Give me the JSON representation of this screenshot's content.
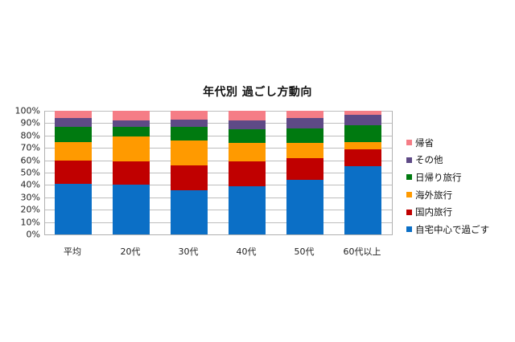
{
  "chart_data": {
    "type": "bar",
    "stacked": true,
    "percent_stacked": true,
    "title": "年代別 過ごし方動向",
    "xlabel": "",
    "ylabel": "",
    "ylim": [
      0,
      100
    ],
    "yticks": [
      "0%",
      "10%",
      "20%",
      "30%",
      "40%",
      "50%",
      "60%",
      "70%",
      "80%",
      "90%",
      "100%"
    ],
    "grid": true,
    "legend_position": "right",
    "categories": [
      "平均",
      "20代",
      "30代",
      "40代",
      "50代",
      "60代以上"
    ],
    "series": [
      {
        "name": "自宅中心で過ごす",
        "color": "#0b6fc6",
        "values": [
          41,
          40,
          36,
          39,
          44,
          55
        ]
      },
      {
        "name": "国内旅行",
        "color": "#c00000",
        "values": [
          19,
          19,
          20,
          20,
          18,
          14
        ]
      },
      {
        "name": "海外旅行",
        "color": "#ff9a00",
        "values": [
          15,
          20,
          20,
          15,
          12,
          6
        ]
      },
      {
        "name": "日帰り旅行",
        "color": "#007a10",
        "values": [
          12,
          8,
          11,
          11,
          12,
          13
        ]
      },
      {
        "name": "その他",
        "color": "#5e4a86",
        "values": [
          7,
          5,
          6,
          7,
          8,
          9
        ]
      },
      {
        "name": "帰省",
        "color": "#f57d86",
        "values": [
          6,
          8,
          7,
          8,
          6,
          3
        ]
      }
    ]
  },
  "legend_order": [
    "帰省",
    "その他",
    "日帰り旅行",
    "海外旅行",
    "国内旅行",
    "自宅中心で過ごす"
  ]
}
